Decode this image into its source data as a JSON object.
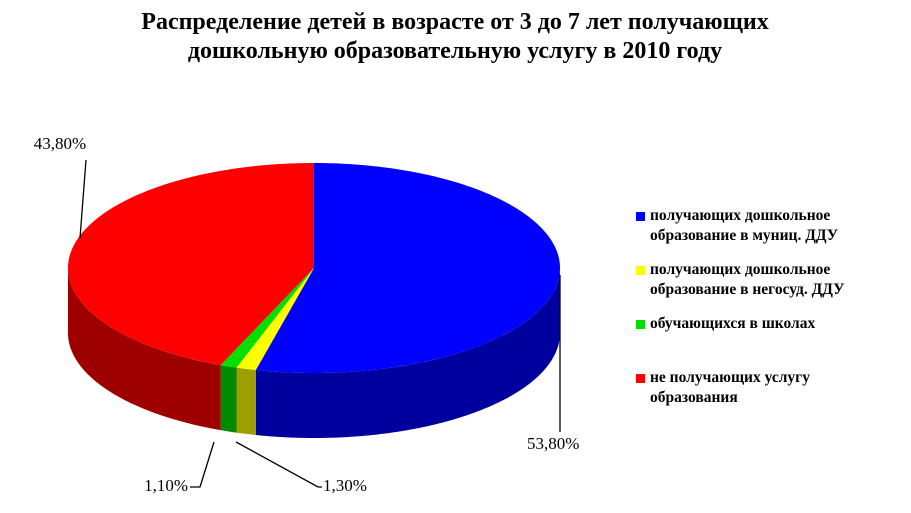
{
  "chart_data": {
    "type": "pie",
    "title": "Распределение детей в возрасте от 3 до 7 лет получающих дошкольную образовательную услугу  в 2010 году",
    "categories": [
      "получающих дошкольное образование в муниц. ДДУ",
      "получающих дошкольное образование в негосуд. ДДУ",
      "обучающихся в школах",
      "не получающих услугу образования"
    ],
    "values": [
      53.8,
      1.3,
      1.1,
      43.8
    ],
    "value_labels": [
      "53,80%",
      "1,30%",
      "1,10%",
      "43,80%"
    ],
    "colors": [
      "#0000ff",
      "#ffff00",
      "#00e000",
      "#ff0000"
    ]
  }
}
